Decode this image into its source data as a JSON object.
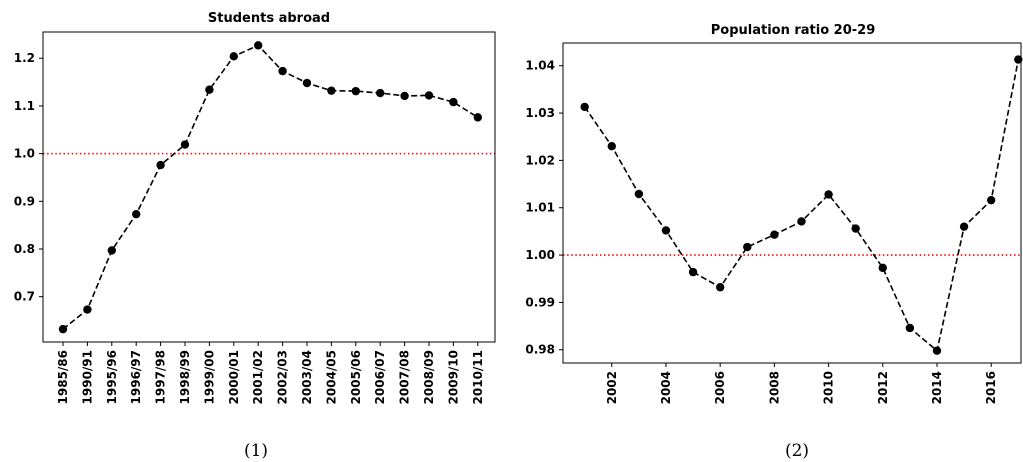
{
  "chart_data": [
    {
      "type": "line",
      "title": "Students abroad",
      "caption": "(1)",
      "categories": [
        "1985/86",
        "1990/91",
        "1995/96",
        "1996/97",
        "1997/98",
        "1998/99",
        "1999/00",
        "2000/01",
        "2001/02",
        "2002/03",
        "2003/04",
        "2004/05",
        "2005/06",
        "2006/07",
        "2007/08",
        "2008/09",
        "2009/10",
        "2010/11"
      ],
      "values": [
        0.632,
        0.673,
        0.797,
        0.873,
        0.976,
        1.019,
        1.134,
        1.204,
        1.227,
        1.173,
        1.148,
        1.132,
        1.131,
        1.127,
        1.121,
        1.122,
        1.108,
        1.076
      ],
      "yticks": [
        0.7,
        0.8,
        0.9,
        1.0,
        1.1,
        1.2
      ],
      "ytick_labels": [
        "0.7",
        "0.8",
        "0.9",
        "1.0",
        "1.1",
        "1.2"
      ],
      "ylim": [
        0.605,
        1.255
      ],
      "reference_line": 1.0,
      "line_color": "#000000",
      "line_style": "dashed",
      "reference_color": "#ff0000",
      "grid": false
    },
    {
      "type": "line",
      "title": "Population ratio 20-29",
      "caption": "(2)",
      "x": [
        2001,
        2002,
        2003,
        2004,
        2005,
        2006,
        2007,
        2008,
        2009,
        2010,
        2011,
        2012,
        2013,
        2014,
        2015,
        2016,
        2017
      ],
      "values": [
        1.0313,
        1.023,
        1.0129,
        1.0052,
        0.9964,
        0.9932,
        1.0017,
        1.0043,
        1.0071,
        1.0128,
        1.0056,
        0.9973,
        0.9846,
        0.9798,
        1.006,
        1.0116,
        1.0413
      ],
      "xticks": [
        2002,
        2004,
        2006,
        2008,
        2010,
        2012,
        2014,
        2016
      ],
      "xtick_labels": [
        "2002",
        "2004",
        "2006",
        "2008",
        "2010",
        "2012",
        "2014",
        "2016"
      ],
      "yticks": [
        0.98,
        0.99,
        1.0,
        1.01,
        1.02,
        1.03,
        1.04
      ],
      "ytick_labels": [
        "0.98",
        "0.99",
        "1.00",
        "1.01",
        "1.02",
        "1.03",
        "1.04"
      ],
      "xlim": [
        2000.2,
        2017.1
      ],
      "ylim": [
        0.9772,
        1.0448
      ],
      "reference_line": 1.0,
      "line_color": "#000000",
      "line_style": "dashed",
      "reference_color": "#ff0000",
      "grid": false
    }
  ]
}
